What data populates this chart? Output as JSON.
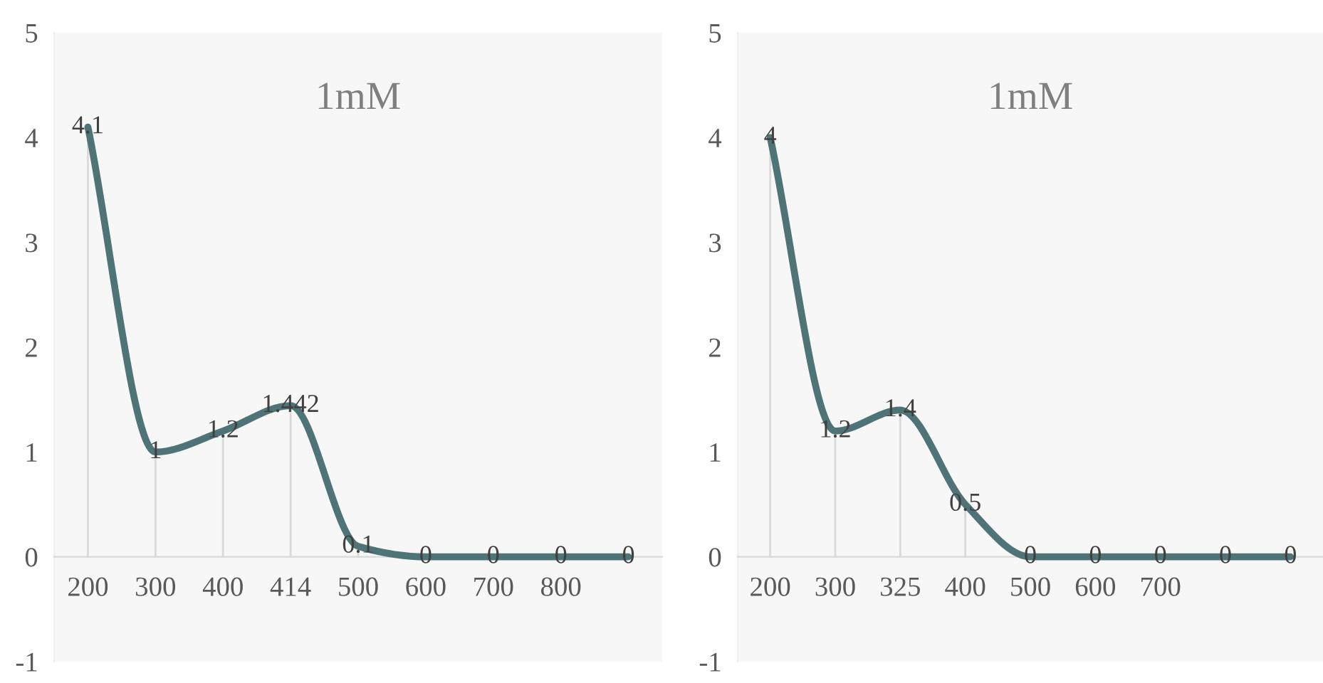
{
  "chart_data": [
    {
      "type": "line",
      "title": "1mM",
      "categories": [
        "200",
        "300",
        "400",
        "414",
        "500",
        "600",
        "700",
        "800",
        null
      ],
      "series": [
        {
          "color": "#4f7478",
          "values": [
            4.1,
            1,
            1.2,
            1.442,
            0.1,
            0,
            0,
            0,
            0
          ]
        }
      ],
      "ylim": [
        -1,
        5
      ],
      "yticks": [
        -1,
        0,
        1,
        2,
        3,
        4,
        5
      ],
      "data_labels": true,
      "grid": false,
      "marker": "none",
      "line_style": "solid"
    },
    {
      "type": "line",
      "title": "1mM",
      "categories": [
        "200",
        "300",
        "325",
        "400",
        "500",
        "600",
        "700",
        null,
        null
      ],
      "series": [
        {
          "color": "#4f7478",
          "values": [
            4,
            1.2,
            1.4,
            0.5,
            0,
            0,
            0,
            0,
            0
          ]
        }
      ],
      "ylim": [
        -1,
        5
      ],
      "yticks": [
        -1,
        0,
        1,
        2,
        3,
        4,
        5
      ],
      "data_labels": true,
      "grid": false,
      "marker": "none",
      "line_style": "solid"
    }
  ]
}
